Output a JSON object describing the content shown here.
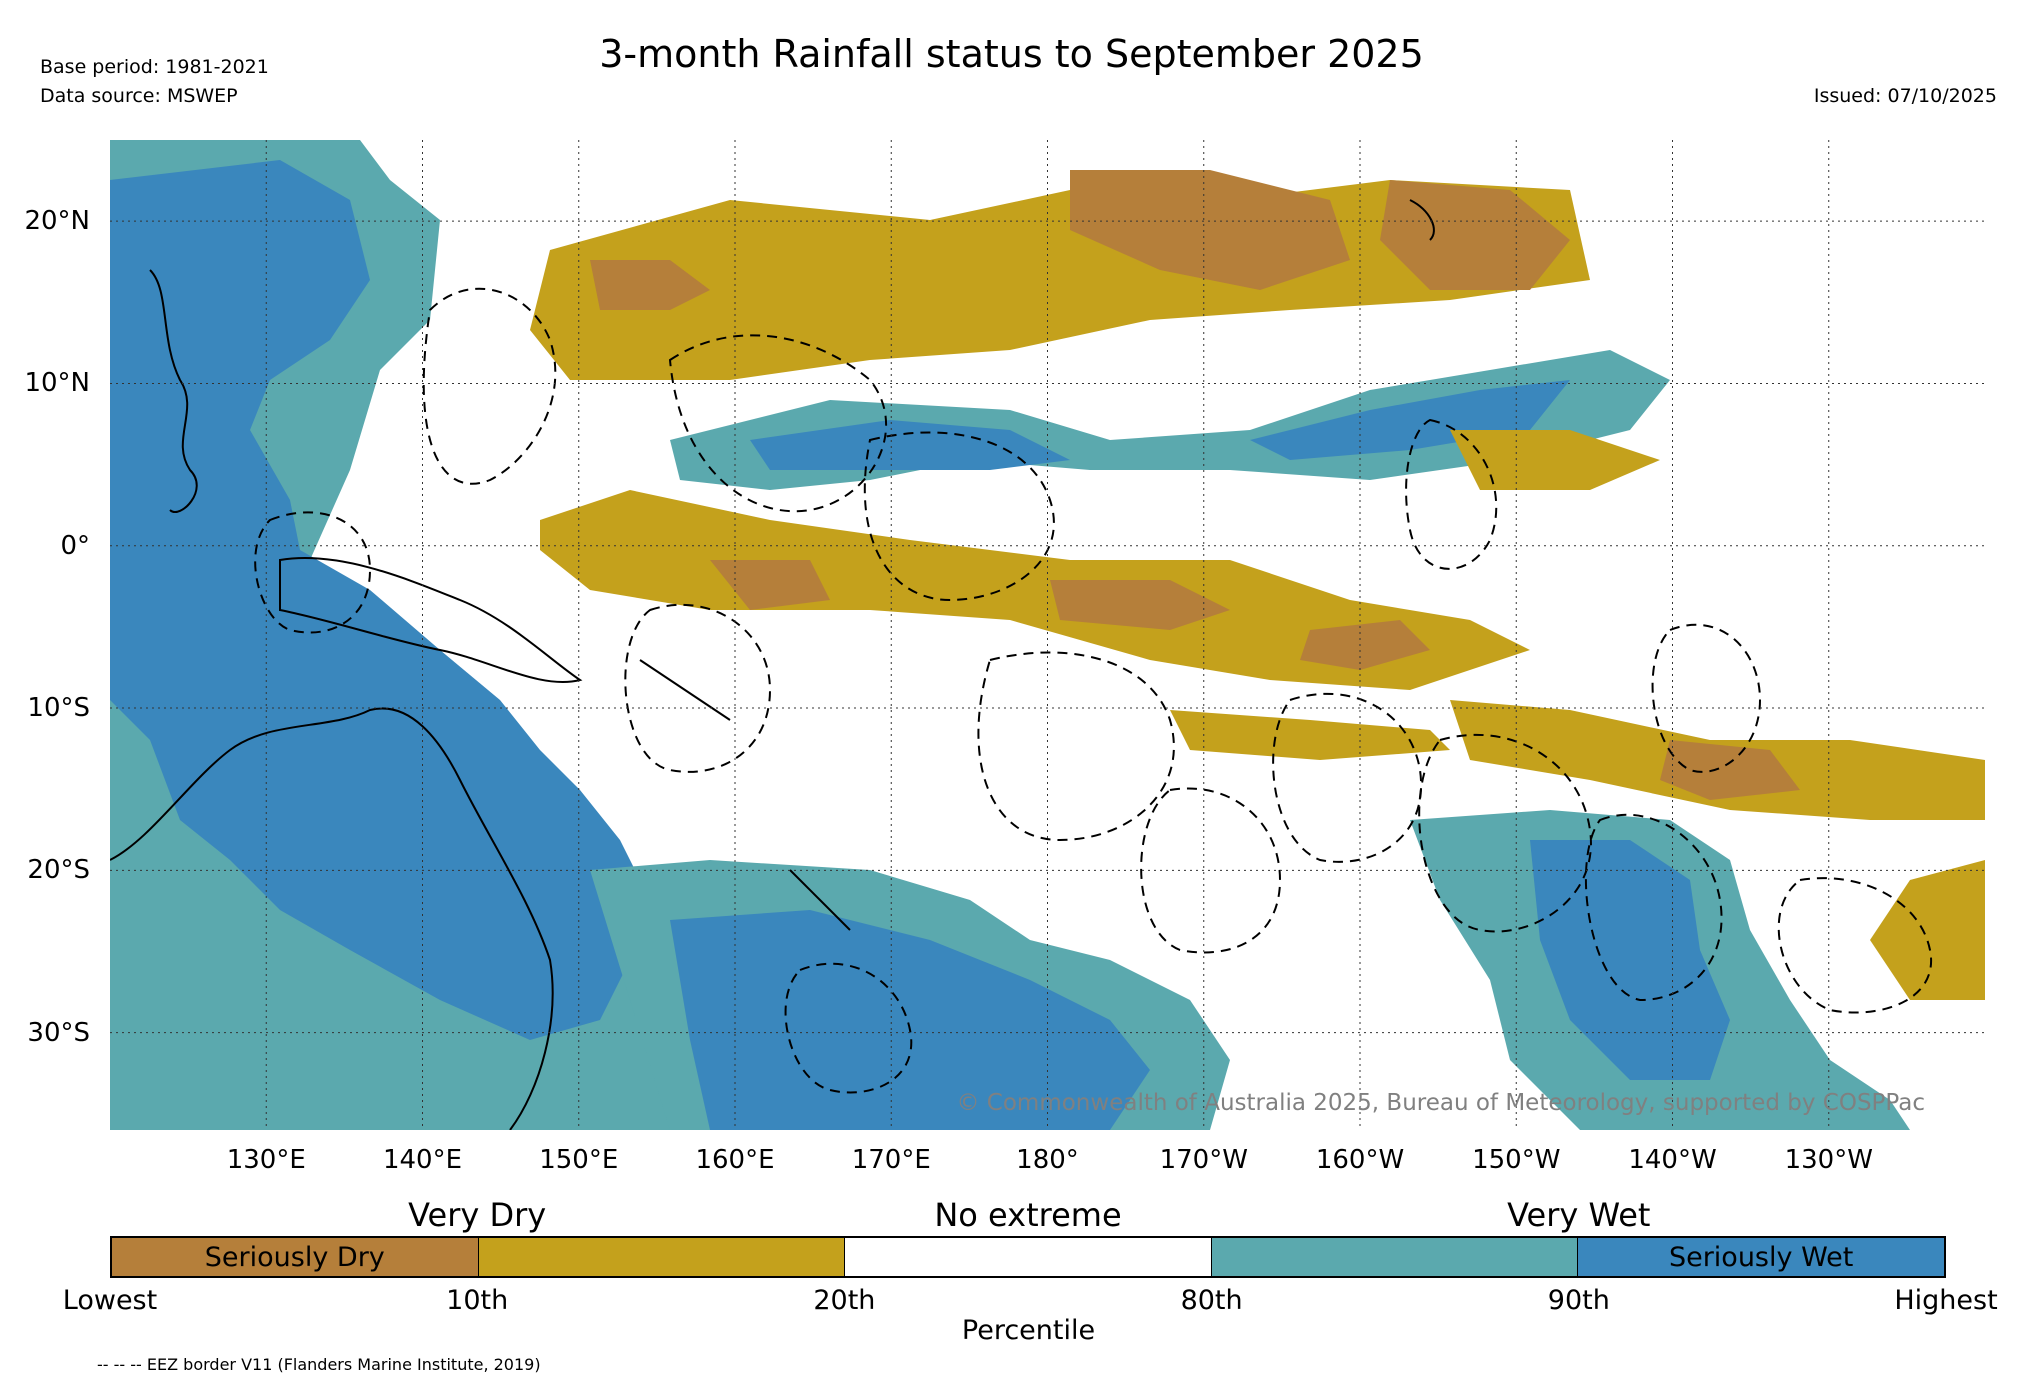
{
  "title": "3-month Rainfall status to September 2025",
  "base_period": "Base period: 1981-2021",
  "data_source": "Data source: MSWEP",
  "issued": "Issued: 07/10/2025",
  "copyright": "© Commonwealth of Australia 2025, Bureau of Meteorology, supported by COSPPac",
  "eez_note": "-- -- -- EEZ border V11 (Flanders Marine Institute, 2019)",
  "colors": {
    "seriously_dry": "#b57f3a",
    "very_dry": "#c4a11c",
    "no_extreme": "#ffffff",
    "very_wet": "#5ba9ae",
    "seriously_wet": "#3a87bd",
    "land": "#000000"
  },
  "map": {
    "lat_range": [
      -36,
      25
    ],
    "lon_range": [
      120,
      240
    ],
    "lat_labels": [
      {
        "lat": 20,
        "text": "20°N"
      },
      {
        "lat": 10,
        "text": "10°N"
      },
      {
        "lat": 0,
        "text": "0°"
      },
      {
        "lat": -10,
        "text": "10°S"
      },
      {
        "lat": -20,
        "text": "20°S"
      },
      {
        "lat": -30,
        "text": "30°S"
      }
    ],
    "lon_labels": [
      {
        "lon": 130,
        "text": "130°E"
      },
      {
        "lon": 140,
        "text": "140°E"
      },
      {
        "lon": 150,
        "text": "150°E"
      },
      {
        "lon": 160,
        "text": "160°E"
      },
      {
        "lon": 170,
        "text": "170°E"
      },
      {
        "lon": 180,
        "text": "180°"
      },
      {
        "lon": 190,
        "text": "170°W"
      },
      {
        "lon": 200,
        "text": "160°W"
      },
      {
        "lon": 210,
        "text": "150°W"
      },
      {
        "lon": 220,
        "text": "140°W"
      },
      {
        "lon": 230,
        "text": "130°W"
      }
    ]
  },
  "legend": {
    "categories": [
      {
        "text": "Very Dry",
        "pos": 1
      },
      {
        "text": "No extreme",
        "pos": 2.5
      },
      {
        "text": "Very Wet",
        "pos": 4
      }
    ],
    "segments": [
      {
        "label": "Seriously Dry",
        "color": "#b57f3a"
      },
      {
        "label": "",
        "color": "#c4a11c"
      },
      {
        "label": "",
        "color": "#ffffff"
      },
      {
        "label": "",
        "color": "#5ba9ae"
      },
      {
        "label": "Seriously Wet",
        "color": "#3a87bd"
      }
    ],
    "ticks": [
      "Lowest",
      "10th",
      "20th",
      "80th",
      "90th",
      "Highest"
    ],
    "axis_label": "Percentile"
  }
}
